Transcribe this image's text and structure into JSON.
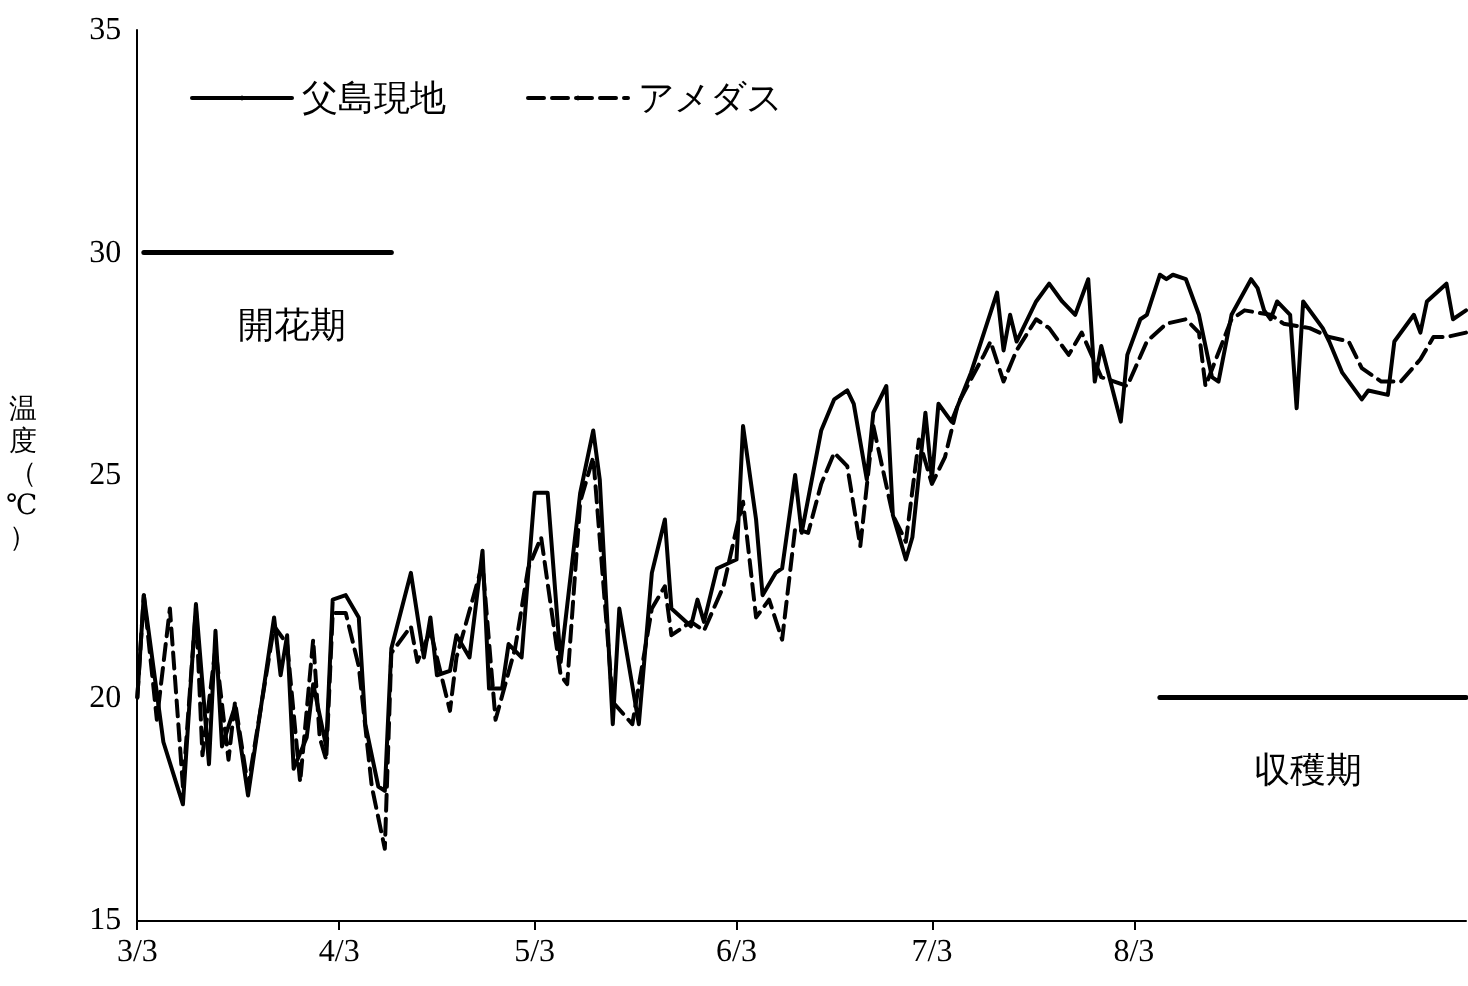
{
  "chart_data": {
    "type": "line",
    "ylabel": "温度（℃）",
    "xlim": [
      "--03-03",
      "--09-23"
    ],
    "ylim": [
      15,
      35
    ],
    "yticks": [
      15,
      20,
      25,
      30,
      35
    ],
    "xticks": [
      {
        "value": "--03-03",
        "label": "3/3"
      },
      {
        "value": "--04-03",
        "label": "4/3"
      },
      {
        "value": "--05-03",
        "label": "5/3"
      },
      {
        "value": "--06-03",
        "label": "6/3"
      },
      {
        "value": "--07-03",
        "label": "7/3"
      },
      {
        "value": "--08-03",
        "label": "8/3"
      }
    ],
    "grid": false,
    "legend": "top left",
    "marker": "none",
    "series": [
      {
        "name": "父島現地",
        "color": "#000000",
        "line_style": "solid",
        "x": [
          "--03-03",
          "--03-04",
          "--03-07",
          "--03-10",
          "--03-12",
          "--03-14",
          "--03-15",
          "--03-16",
          "--03-18",
          "--03-20",
          "--03-24",
          "--03-25",
          "--03-26",
          "--03-27",
          "--03-29",
          "--03-30",
          "--04-01",
          "--04-02",
          "--04-04",
          "--04-06",
          "--04-07",
          "--04-09",
          "--04-10",
          "--04-11",
          "--04-14",
          "--04-16",
          "--04-17",
          "--04-18",
          "--04-20",
          "--04-21",
          "--04-23",
          "--04-25",
          "--04-26",
          "--04-28",
          "--04-29",
          "--05-01",
          "--05-03",
          "--05-05",
          "--05-07",
          "--05-10",
          "--05-12",
          "--05-13",
          "--05-15",
          "--05-16",
          "--05-19",
          "--05-21",
          "--05-23",
          "--05-24",
          "--05-27",
          "--05-28",
          "--05-29",
          "--05-31",
          "--06-03",
          "--06-04",
          "--06-06",
          "--06-07",
          "--06-09",
          "--06-10",
          "--06-12",
          "--06-13",
          "--06-16",
          "--06-18",
          "--06-20",
          "--06-21",
          "--06-23",
          "--06-24",
          "--06-26",
          "--06-27",
          "--06-29",
          "--06-30",
          "--07-02",
          "--07-03",
          "--07-04",
          "--07-06",
          "--07-09",
          "--07-11",
          "--07-13",
          "--07-14",
          "--07-15",
          "--07-16",
          "--07-19",
          "--07-21",
          "--07-23",
          "--07-25",
          "--07-27",
          "--07-28",
          "--07-29",
          "--08-01",
          "--08-02",
          "--08-04",
          "--08-05",
          "--08-07",
          "--08-08",
          "--08-09",
          "--08-11",
          "--08-13",
          "--08-15",
          "--08-16",
          "--08-18",
          "--08-21",
          "--08-22",
          "--08-23",
          "--08-24",
          "--08-25",
          "--08-27",
          "--08-28",
          "--08-29",
          "--09-01",
          "--09-02",
          "--09-04",
          "--09-07",
          "--09-08",
          "--09-11",
          "--09-12",
          "--09-15",
          "--09-16",
          "--09-17",
          "--09-20",
          "--09-21",
          "--09-23"
        ],
        "values": [
          20.0,
          22.3,
          19.0,
          17.6,
          22.1,
          18.5,
          21.5,
          18.9,
          19.8,
          17.8,
          21.8,
          20.5,
          21.4,
          18.4,
          19.1,
          20.3,
          18.9,
          22.2,
          22.3,
          21.8,
          19.4,
          18.0,
          17.9,
          21.1,
          22.8,
          20.9,
          21.8,
          20.5,
          20.6,
          21.4,
          20.9,
          23.3,
          20.2,
          20.2,
          21.2,
          20.9,
          24.6,
          24.6,
          20.8,
          24.6,
          26.0,
          24.9,
          19.4,
          22.0,
          19.4,
          22.8,
          24.0,
          22.0,
          21.6,
          22.2,
          21.7,
          22.9,
          23.1,
          26.1,
          24.0,
          22.3,
          22.8,
          22.9,
          25.0,
          23.7,
          26.0,
          26.7,
          26.9,
          26.6,
          24.9,
          26.4,
          27.0,
          24.1,
          23.1,
          23.6,
          26.4,
          24.9,
          26.6,
          26.2,
          27.3,
          28.2,
          29.1,
          27.8,
          28.6,
          28.0,
          28.9,
          29.3,
          28.9,
          28.6,
          29.4,
          27.1,
          27.9,
          26.2,
          27.7,
          28.5,
          28.6,
          29.5,
          29.4,
          29.5,
          29.4,
          28.6,
          27.2,
          27.1,
          28.6,
          29.4,
          29.2,
          28.7,
          28.5,
          28.9,
          28.6,
          26.5,
          28.9,
          28.3,
          28.0,
          27.3,
          26.7,
          26.9,
          26.8,
          28.0,
          28.6,
          28.2,
          28.9,
          29.3,
          28.5,
          28.7
        ]
      },
      {
        "name": "アメダス",
        "color": "#000000",
        "line_style": "dashed",
        "x": [
          "--03-03",
          "--03-04",
          "--03-06",
          "--03-08",
          "--03-10",
          "--03-12",
          "--03-13",
          "--03-15",
          "--03-17",
          "--03-18",
          "--03-20",
          "--03-24",
          "--03-26",
          "--03-28",
          "--03-30",
          "--03-31",
          "--04-01",
          "--04-02",
          "--04-04",
          "--04-06",
          "--04-08",
          "--04-10",
          "--04-11",
          "--04-14",
          "--04-15",
          "--04-17",
          "--04-20",
          "--04-21",
          "--04-25",
          "--04-27",
          "--04-30",
          "--05-02",
          "--05-04",
          "--05-07",
          "--05-08",
          "--05-10",
          "--05-12",
          "--05-15",
          "--05-18",
          "--05-21",
          "--05-23",
          "--05-24",
          "--05-27",
          "--05-29",
          "--06-01",
          "--06-03",
          "--06-04",
          "--06-06",
          "--06-08",
          "--06-10",
          "--06-12",
          "--06-14",
          "--06-16",
          "--06-18",
          "--06-20",
          "--06-22",
          "--06-24",
          "--06-27",
          "--06-29",
          "--07-01",
          "--07-03",
          "--07-05",
          "--07-07",
          "--07-11",
          "--07-12",
          "--07-14",
          "--07-16",
          "--07-19",
          "--07-21",
          "--07-24",
          "--07-26",
          "--07-29",
          "--08-02",
          "--08-05",
          "--08-08",
          "--08-11",
          "--08-13",
          "--08-14",
          "--08-18",
          "--08-20",
          "--08-24",
          "--08-26",
          "--08-30",
          "--09-02",
          "--09-05",
          "--09-07",
          "--09-10",
          "--09-13",
          "--09-16",
          "--09-18",
          "--09-20",
          "--09-23"
        ],
        "values": [
          20.0,
          22.3,
          19.5,
          22.0,
          18.0,
          22.0,
          18.7,
          21.1,
          18.6,
          19.9,
          18.0,
          21.6,
          21.2,
          18.1,
          21.3,
          19.1,
          18.6,
          21.9,
          21.9,
          20.7,
          18.0,
          16.6,
          21.0,
          21.6,
          20.8,
          21.5,
          19.7,
          20.9,
          23.0,
          19.5,
          21.1,
          22.9,
          23.6,
          20.5,
          20.3,
          24.4,
          25.4,
          19.9,
          19.4,
          22.0,
          22.5,
          21.4,
          21.7,
          21.5,
          22.5,
          23.8,
          24.4,
          21.8,
          22.2,
          21.3,
          23.8,
          23.7,
          24.8,
          25.5,
          25.2,
          23.4,
          26.1,
          24.1,
          23.5,
          25.8,
          24.8,
          25.4,
          26.6,
          27.7,
          28.0,
          27.1,
          27.8,
          28.5,
          28.3,
          27.7,
          28.2,
          27.2,
          27.0,
          28.0,
          28.4,
          28.5,
          28.2,
          27.0,
          28.5,
          28.7,
          28.6,
          28.4,
          28.3,
          28.1,
          28.0,
          27.4,
          27.1,
          27.1,
          27.6,
          28.1,
          28.1,
          28.2
        ]
      },
      {
        "name": "開花期",
        "type": "line",
        "color": "#000000",
        "line_style": "solid",
        "x": [
          "--03-04",
          "--04-11"
        ],
        "values": [
          30,
          30
        ]
      },
      {
        "name": "収穫期",
        "type": "line",
        "color": "#000000",
        "line_style": "solid",
        "x": [
          "--08-07",
          "--09-23"
        ],
        "values": [
          20,
          20
        ]
      }
    ]
  }
}
